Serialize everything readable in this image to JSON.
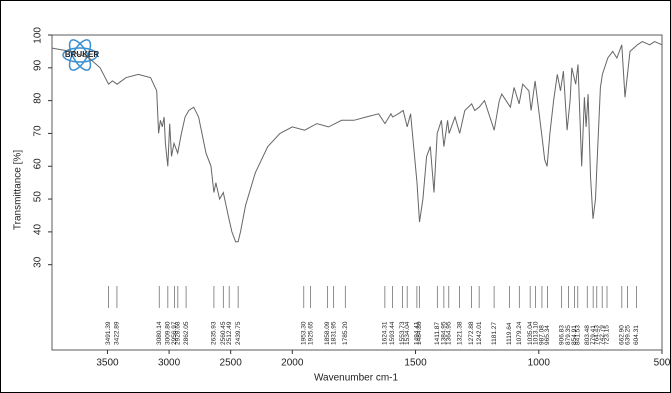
{
  "chart_data": {
    "type": "line",
    "logo": "BRUKER",
    "x_label": "Wavenumber cm-1",
    "y_label": "Transmittance [%]",
    "xlim": [
      3950,
      500
    ],
    "x_break": 2000,
    "xticks": [
      3500,
      3000,
      2500,
      2000,
      1500,
      1000,
      500
    ],
    "ylim": [
      4,
      100
    ],
    "yticks": [
      30,
      40,
      50,
      60,
      70,
      80,
      90,
      100
    ],
    "color": "#666666",
    "x": [
      3950,
      3800,
      3650,
      3560,
      3491,
      3460,
      3422,
      3350,
      3250,
      3150,
      3100,
      3085,
      3070,
      3055,
      3040,
      3030,
      3010,
      2995,
      2980,
      2960,
      2930,
      2900,
      2870,
      2840,
      2800,
      2760,
      2700,
      2660,
      2636,
      2620,
      2590,
      2560,
      2520,
      2490,
      2460,
      2440,
      2420,
      2380,
      2300,
      2200,
      2100,
      2000,
      1950,
      1900,
      1853,
      1826,
      1800,
      1750,
      1700,
      1650,
      1624,
      1600,
      1593,
      1570,
      1550,
      1534,
      1520,
      1494,
      1484,
      1470,
      1455,
      1440,
      1425,
      1412,
      1395,
      1385,
      1370,
      1364,
      1340,
      1321,
      1300,
      1272,
      1260,
      1242,
      1220,
      1181,
      1160,
      1150,
      1115,
      1100,
      1080,
      1065,
      1040,
      1031,
      1015,
      987,
      976,
      966,
      955,
      940,
      925,
      912,
      900,
      885,
      873,
      866,
      850,
      841,
      826,
      815,
      808,
      800,
      790,
      780,
      770,
      764,
      750,
      742,
      720,
      700,
      683,
      663,
      650,
      630,
      600,
      580,
      550,
      530,
      500
    ],
    "values": [
      96,
      95,
      93,
      90,
      85,
      86,
      85,
      87,
      88,
      87,
      83,
      70,
      74,
      72,
      75,
      67,
      60,
      73,
      63,
      67,
      64,
      70,
      75,
      77,
      78,
      75,
      64,
      60,
      52,
      55,
      50,
      52,
      45,
      40,
      37,
      37,
      40,
      48,
      58,
      66,
      70,
      72,
      71,
      73,
      72,
      73,
      74,
      74,
      75,
      76,
      73,
      76,
      75,
      76,
      77,
      72,
      76,
      55,
      43,
      50,
      63,
      66,
      52,
      70,
      74,
      66,
      74,
      70,
      75,
      70,
      77,
      79,
      77,
      78,
      80,
      71,
      80,
      82,
      78,
      84,
      79,
      85,
      83,
      77,
      86,
      69,
      62,
      60,
      70,
      80,
      88,
      83,
      89,
      71,
      80,
      90,
      85,
      91,
      60,
      81,
      72,
      82,
      57,
      44,
      50,
      60,
      84,
      88,
      93,
      95,
      93,
      97,
      81,
      95,
      97,
      98,
      97,
      98,
      97
    ],
    "peaks": [
      {
        "value": 3491.39,
        "label": "3491.39"
      },
      {
        "value": 3422.89,
        "label": "3422.89"
      },
      {
        "value": 3080.14,
        "label": "3080.14"
      },
      {
        "value": 3009.8,
        "label": "3009.80"
      },
      {
        "value": 2956.97,
        "label": "2956.97"
      },
      {
        "value": 2928.68,
        "label": "2928.68"
      },
      {
        "value": 2862.05,
        "label": "2862.05"
      },
      {
        "value": 2635.93,
        "label": "2635.93"
      },
      {
        "value": 2560.45,
        "label": "2560.45"
      },
      {
        "value": 2512.49,
        "label": "2512.49"
      },
      {
        "value": 2439.75,
        "label": "2439.75"
      },
      {
        "value": 1953.3,
        "label": "1953.30"
      },
      {
        "value": 1925.65,
        "label": "1925.65"
      },
      {
        "value": 1858.09,
        "label": "1858.09"
      },
      {
        "value": 1831.95,
        "label": "1831.95"
      },
      {
        "value": 1785.2,
        "label": "1785.20"
      },
      {
        "value": 1624.31,
        "label": "1624.31"
      },
      {
        "value": 1593.44,
        "label": "1593.44"
      },
      {
        "value": 1553.73,
        "label": "1553.73"
      },
      {
        "value": 1534.04,
        "label": "1534.04"
      },
      {
        "value": 1494.41,
        "label": "1494.41"
      },
      {
        "value": 1484.8,
        "label": "1484.80"
      },
      {
        "value": 1411.87,
        "label": "1411.87"
      },
      {
        "value": 1384.95,
        "label": "1384.95"
      },
      {
        "value": 1364.95,
        "label": "1364.95"
      },
      {
        "value": 1321.38,
        "label": "1321.38"
      },
      {
        "value": 1272.88,
        "label": "1272.88"
      },
      {
        "value": 1242.01,
        "label": "1242.01"
      },
      {
        "value": 1181.27,
        "label": "1181.27"
      },
      {
        "value": 1119.64,
        "label": "1119.64"
      },
      {
        "value": 1079.24,
        "label": "1079.24"
      },
      {
        "value": 1035.04,
        "label": "1035.04"
      },
      {
        "value": 1013.1,
        "label": "1013.10"
      },
      {
        "value": 987.08,
        "label": "987.08"
      },
      {
        "value": 965.34,
        "label": "965.34"
      },
      {
        "value": 906.83,
        "label": "906.83"
      },
      {
        "value": 879.35,
        "label": "879.35"
      },
      {
        "value": 854.91,
        "label": "854.91"
      },
      {
        "value": 841.53,
        "label": "841.53"
      },
      {
        "value": 803.48,
        "label": "803.48"
      },
      {
        "value": 779.41,
        "label": "779.41"
      },
      {
        "value": 764.43,
        "label": "764.43"
      },
      {
        "value": 742.79,
        "label": "742.79"
      },
      {
        "value": 723.15,
        "label": "723.15"
      },
      {
        "value": 662.9,
        "label": "662.90"
      },
      {
        "value": 639.25,
        "label": "639.25"
      },
      {
        "value": 604.31,
        "label": "604.31"
      }
    ]
  }
}
